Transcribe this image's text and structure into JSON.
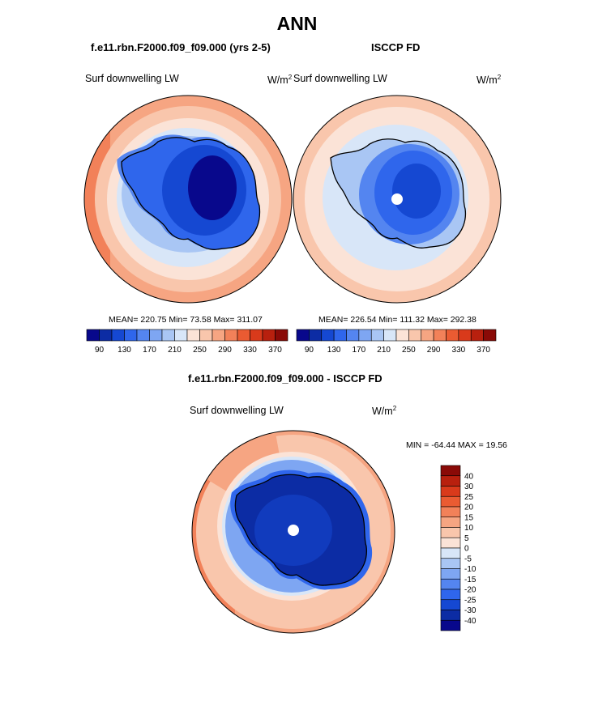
{
  "title": "ANN",
  "panels": [
    {
      "title": "f.e11.rbn.F2000.f09_f09.000 (yrs 2-5)",
      "field_label": "Surf downwelling LW",
      "units": "W/m",
      "units_sup": "2",
      "stats": "MEAN= 220.75  Min=  73.58  Max= 311.07",
      "colorbar_ticks": [
        "90",
        "130",
        "170",
        "210",
        "250",
        "290",
        "330",
        "370"
      ]
    },
    {
      "title": "ISCCP FD",
      "field_label": "Surf downwelling LW",
      "units": "W/m",
      "units_sup": "2",
      "stats": "MEAN= 226.54  Min= 111.32  Max= 292.38",
      "colorbar_ticks": [
        "90",
        "130",
        "170",
        "210",
        "250",
        "290",
        "330",
        "370"
      ]
    }
  ],
  "diff_panel": {
    "title": "f.e11.rbn.F2000.f09_f09.000 - ISCCP FD",
    "field_label": "Surf downwelling LW",
    "units": "W/m",
    "units_sup": "2",
    "stats": "MIN = -64.44 MAX =  19.56",
    "colorbar_ticks": [
      "40",
      "30",
      "25",
      "20",
      "15",
      "10",
      "5",
      "0",
      "-5",
      "-10",
      "-15",
      "-20",
      "-25",
      "-30",
      "-40"
    ]
  },
  "palettes": {
    "absolute": [
      "#08088c",
      "#0c2ca4",
      "#1548d2",
      "#2f66ec",
      "#5485f0",
      "#7ea6f2",
      "#a9c6f4",
      "#d8e6f8",
      "#fbe3d7",
      "#f9c6ac",
      "#f6a582",
      "#f28159",
      "#ea5b32",
      "#d93a1b",
      "#b8200e",
      "#8a0a07"
    ],
    "difference": [
      "#8a0a07",
      "#b8200e",
      "#d93a1b",
      "#ea5b32",
      "#f28159",
      "#f6a582",
      "#f9c6ac",
      "#fbe3d7",
      "#d8e6f8",
      "#a9c6f4",
      "#7ea6f2",
      "#5485f0",
      "#2f66ec",
      "#1548d2",
      "#0c2ca4",
      "#08088c"
    ]
  },
  "chart_data": [
    {
      "type": "heatmap",
      "projection": "south polar stereographic",
      "title": "f.e11.rbn.F2000.f09_f09.000 (yrs 2-5)",
      "variable": "Surf downwelling LW",
      "units": "W/m2",
      "mean": 220.75,
      "min": 73.58,
      "max": 311.07,
      "contour_levels": [
        70,
        90,
        110,
        130,
        150,
        170,
        190,
        210,
        230,
        250,
        270,
        290,
        310,
        330,
        350,
        370
      ],
      "colorbar_labels": [
        90,
        130,
        170,
        210,
        250,
        290,
        330,
        370
      ]
    },
    {
      "type": "heatmap",
      "projection": "south polar stereographic",
      "title": "ISCCP FD",
      "variable": "Surf downwelling LW",
      "units": "W/m2",
      "mean": 226.54,
      "min": 111.32,
      "max": 292.38,
      "contour_levels": [
        70,
        90,
        110,
        130,
        150,
        170,
        190,
        210,
        230,
        250,
        270,
        290,
        310,
        330,
        350,
        370
      ],
      "colorbar_labels": [
        90,
        130,
        170,
        210,
        250,
        290,
        330,
        370
      ]
    },
    {
      "type": "heatmap",
      "projection": "south polar stereographic",
      "title": "f.e11.rbn.F2000.f09_f09.000 - ISCCP FD",
      "variable": "Surf downwelling LW",
      "units": "W/m2",
      "min": -64.44,
      "max": 19.56,
      "contour_levels": [
        40,
        30,
        25,
        20,
        15,
        10,
        5,
        0,
        -5,
        -10,
        -15,
        -20,
        -25,
        -30,
        -40
      ],
      "colorbar_labels": [
        40,
        30,
        25,
        20,
        15,
        10,
        5,
        0,
        -5,
        -10,
        -15,
        -20,
        -25,
        -30,
        -40
      ]
    }
  ]
}
